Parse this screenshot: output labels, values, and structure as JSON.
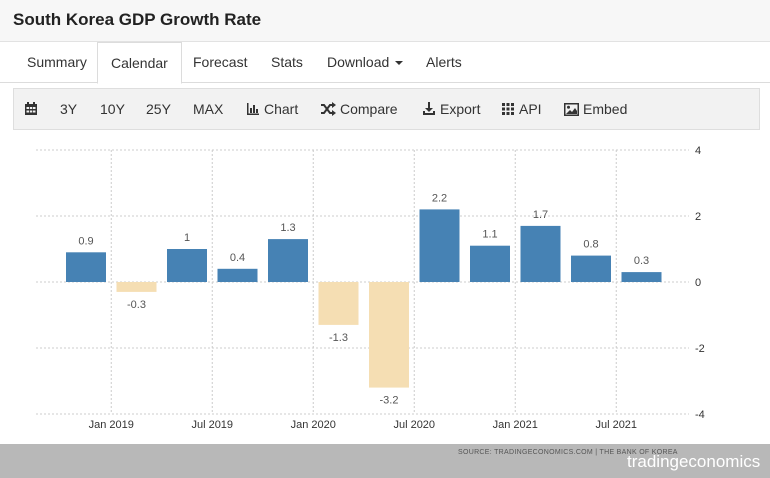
{
  "header": {
    "title": "South Korea GDP Growth Rate"
  },
  "tabs": [
    {
      "label": "Summary"
    },
    {
      "label": "Calendar"
    },
    {
      "label": "Forecast"
    },
    {
      "label": "Stats"
    },
    {
      "label": "Download"
    },
    {
      "label": "Alerts"
    }
  ],
  "toolbar": {
    "ranges": [
      "3Y",
      "10Y",
      "25Y",
      "MAX"
    ],
    "chart_label": "Chart",
    "compare_label": "Compare",
    "export_label": "Export",
    "api_label": "API",
    "embed_label": "Embed"
  },
  "colors": {
    "positive": "#4682b4",
    "negative": "#f5deb3",
    "grid": "#cccccc"
  },
  "chart_data": {
    "type": "bar",
    "title": "South Korea GDP Growth Rate",
    "categories": [
      "2018Q4",
      "2019Q1",
      "2019Q2",
      "2019Q3",
      "2019Q4",
      "2020Q1",
      "2020Q2",
      "2020Q3",
      "2020Q4",
      "2021Q1",
      "2021Q2",
      "2021Q3"
    ],
    "values": [
      0.9,
      -0.3,
      1,
      0.4,
      1.3,
      -1.3,
      -3.2,
      2.2,
      1.1,
      1.7,
      0.8,
      0.3
    ],
    "value_labels": [
      "0.9",
      "-0.3",
      "1",
      "0.4",
      "1.3",
      "-1.3",
      "-3.2",
      "2.2",
      "1.1",
      "1.7",
      "0.8",
      "0.3"
    ],
    "x_tick_labels": [
      "Jan 2019",
      "Jul 2019",
      "Jan 2020",
      "Jul 2020",
      "Jan 2021",
      "Jul 2021"
    ],
    "x_tick_after_index": [
      0,
      2,
      4,
      6,
      8,
      10
    ],
    "y_ticks": [
      4,
      2,
      0,
      -2,
      -4
    ],
    "ylim": [
      -4,
      4
    ],
    "y_axis_side": "right",
    "grid": true,
    "xlabel": "",
    "ylabel": ""
  },
  "footer": {
    "source": "SOURCE: TRADINGECONOMICS.COM  |  THE BANK OF KOREA",
    "brand": "tradingeconomics"
  }
}
